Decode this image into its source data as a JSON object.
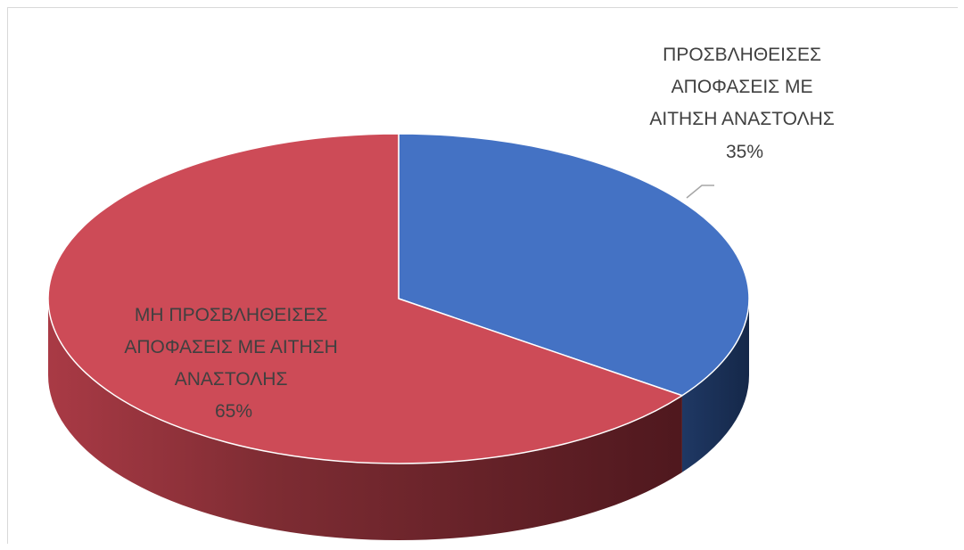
{
  "chart_data": {
    "type": "pie",
    "style": "3d",
    "slices": [
      {
        "label_lines": [
          "ΠΡΟΣΒΛΗΘΕΙΣΕΣ",
          "ΑΠΟΦΑΣΕΙΣ ΜΕ",
          "ΑΙΤΗΣΗ ΑΝΑΣΤΟΛΗΣ"
        ],
        "percent_label": "35%",
        "value": 35,
        "color": "#4472C4",
        "side_color": "#1F3864"
      },
      {
        "label_lines": [
          "ΜΗ ΠΡΟΣΒΛΗΘΕΙΣΕΣ",
          "ΑΠΟΦΑΣΕΙΣ ΜΕ ΑΙΤΗΣΗ",
          "ΑΝΑΣΤΟΛΗΣ"
        ],
        "percent_label": "65%",
        "value": 65,
        "color": "#CD4B57",
        "side_color": "#8E2E36"
      }
    ],
    "legend": "none"
  }
}
